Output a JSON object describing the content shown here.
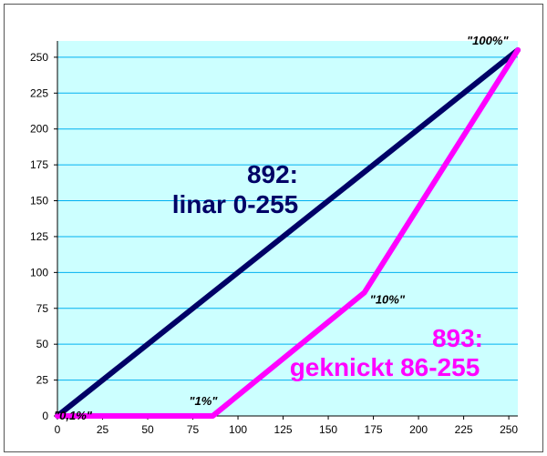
{
  "chart_data": {
    "type": "line",
    "xlim": [
      0,
      255
    ],
    "ylim": [
      0,
      255
    ],
    "x_ticks": [
      0,
      25,
      50,
      75,
      100,
      125,
      150,
      175,
      200,
      225,
      250
    ],
    "y_ticks": [
      0,
      25,
      50,
      75,
      100,
      125,
      150,
      175,
      200,
      225,
      250
    ],
    "grid": true,
    "plot_background": "#ccffff",
    "grid_color": "#00b0f0",
    "series": [
      {
        "name": "892:",
        "name_line2": "linar 0-255",
        "color": "#000066",
        "x": [
          0,
          255
        ],
        "y": [
          0,
          255
        ]
      },
      {
        "name": "893:",
        "name_line2": "geknickt 86-255",
        "color": "#ff00ff",
        "x": [
          0,
          86,
          170,
          255
        ],
        "y": [
          0,
          0,
          86,
          255
        ]
      }
    ],
    "annotations": [
      {
        "text": "\"0,1%\"",
        "x": 0,
        "y": 0
      },
      {
        "text": "\"1%\"",
        "x": 86,
        "y": 0
      },
      {
        "text": "\"10%\"",
        "x": 170,
        "y": 86
      },
      {
        "text": "\"100%\"",
        "x": 255,
        "y": 255
      }
    ]
  }
}
